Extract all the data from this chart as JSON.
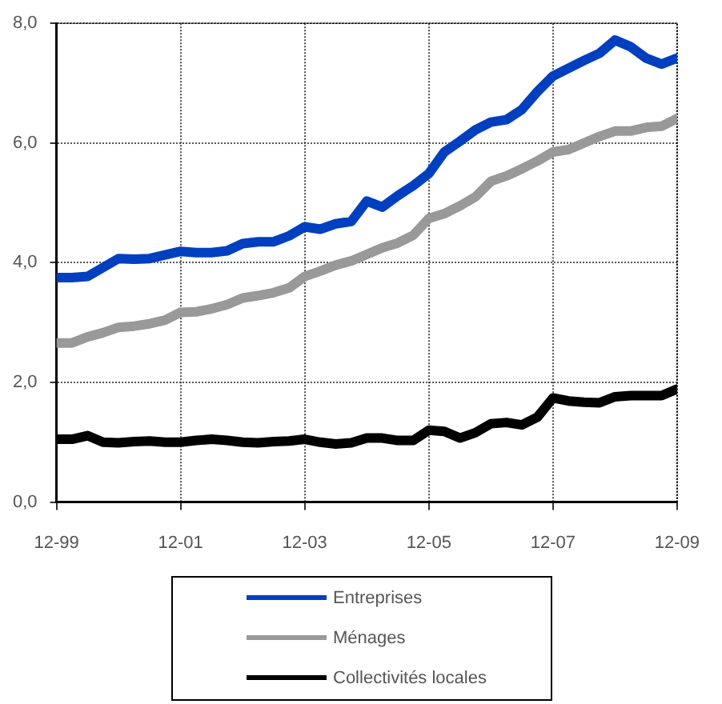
{
  "chart_data": {
    "type": "line",
    "x": [
      "1999-12",
      "2000-03",
      "2000-06",
      "2000-09",
      "2000-12",
      "2001-03",
      "2001-06",
      "2001-09",
      "2001-12",
      "2002-03",
      "2002-06",
      "2002-09",
      "2002-12",
      "2003-03",
      "2003-06",
      "2003-09",
      "2003-12",
      "2004-03",
      "2004-06",
      "2004-09",
      "2004-12",
      "2005-03",
      "2005-06",
      "2005-09",
      "2005-12",
      "2006-03",
      "2006-06",
      "2006-09",
      "2006-12",
      "2007-03",
      "2007-06",
      "2007-09",
      "2007-12",
      "2008-03",
      "2008-06",
      "2008-09",
      "2008-12",
      "2009-03",
      "2009-06",
      "2009-09",
      "2009-12"
    ],
    "series": [
      {
        "name": "Entreprises",
        "color": "#0040c0",
        "values": [
          3.75,
          3.75,
          3.77,
          3.92,
          4.07,
          4.06,
          4.07,
          4.13,
          4.19,
          4.17,
          4.17,
          4.2,
          4.32,
          4.35,
          4.35,
          4.45,
          4.6,
          4.56,
          4.65,
          4.69,
          5.03,
          4.93,
          5.12,
          5.29,
          5.49,
          5.85,
          6.03,
          6.22,
          6.35,
          6.39,
          6.56,
          6.86,
          7.12,
          7.25,
          7.38,
          7.5,
          7.72,
          7.61,
          7.42,
          7.32,
          7.42
        ]
      },
      {
        "name": "Ménages",
        "color": "#999999",
        "values": [
          2.66,
          2.66,
          2.76,
          2.83,
          2.92,
          2.94,
          2.98,
          3.04,
          3.17,
          3.18,
          3.23,
          3.3,
          3.41,
          3.45,
          3.5,
          3.58,
          3.77,
          3.86,
          3.96,
          4.03,
          4.14,
          4.25,
          4.33,
          4.46,
          4.74,
          4.82,
          4.95,
          5.1,
          5.36,
          5.45,
          5.57,
          5.7,
          5.85,
          5.89,
          6.0,
          6.11,
          6.2,
          6.2,
          6.26,
          6.28,
          6.41
        ]
      },
      {
        "name": "Collectivités locales",
        "color": "#000000",
        "values": [
          1.05,
          1.05,
          1.11,
          1.0,
          0.99,
          1.01,
          1.02,
          1.0,
          1.0,
          1.03,
          1.05,
          1.03,
          1.0,
          0.99,
          1.01,
          1.02,
          1.05,
          1.0,
          0.97,
          0.99,
          1.07,
          1.07,
          1.03,
          1.03,
          1.2,
          1.18,
          1.07,
          1.16,
          1.31,
          1.33,
          1.29,
          1.42,
          1.74,
          1.69,
          1.67,
          1.66,
          1.76,
          1.78,
          1.78,
          1.78,
          1.89
        ]
      }
    ],
    "xlim": [
      "1999-12",
      "2009-12"
    ],
    "xticks": [
      {
        "value": "1999-12",
        "label": "12-99"
      },
      {
        "value": "2001-12",
        "label": "12-01"
      },
      {
        "value": "2003-12",
        "label": "12-03"
      },
      {
        "value": "2005-12",
        "label": "12-05"
      },
      {
        "value": "2007-12",
        "label": "12-07"
      },
      {
        "value": "2009-12",
        "label": "12-09"
      }
    ],
    "ylim": [
      0,
      8
    ],
    "yticks": [
      {
        "value": 0,
        "label": "0,0"
      },
      {
        "value": 2,
        "label": "2,0"
      },
      {
        "value": 4,
        "label": "4,0"
      },
      {
        "value": 6,
        "label": "6,0"
      },
      {
        "value": 8,
        "label": "8,0"
      }
    ],
    "grid": true,
    "legend": "bottom",
    "marker": "none",
    "line_style": "solid"
  }
}
